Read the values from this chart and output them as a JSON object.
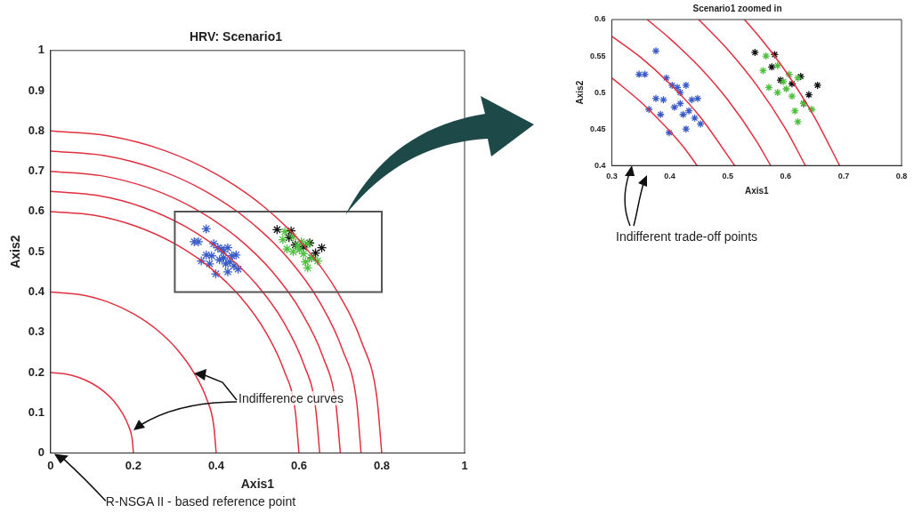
{
  "chart_data": [
    {
      "type": "scatter",
      "title": "HRV: Scenario1",
      "xlabel": "Axis1",
      "ylabel": "Axis2",
      "xlim": [
        0,
        1
      ],
      "ylim": [
        0,
        1
      ],
      "xticks": [
        0,
        0.2,
        0.4,
        0.6,
        0.8,
        1
      ],
      "yticks": [
        0,
        0.1,
        0.2,
        0.3,
        0.4,
        0.5,
        0.6,
        0.7,
        0.8,
        0.9,
        1
      ],
      "grid": false,
      "legend": false,
      "annotations": [
        "Indifference curves",
        "R-NSGA II - based reference point"
      ],
      "series": [
        {
          "type": "line",
          "marker": "none",
          "color": "#e03040",
          "x": [
            0,
            0.035,
            0.068,
            0.1,
            0.129,
            0.153,
            0.173,
            0.188,
            0.197,
            0.2
          ],
          "values": [
            0.2,
            0.197,
            0.188,
            0.173,
            0.153,
            0.129,
            0.1,
            0.068,
            0.035,
            0
          ]
        },
        {
          "type": "line",
          "marker": "none",
          "color": "#e03040",
          "x": [
            0,
            0.069,
            0.137,
            0.2,
            0.257,
            0.306,
            0.346,
            0.376,
            0.394,
            0.4
          ],
          "values": [
            0.4,
            0.394,
            0.376,
            0.346,
            0.306,
            0.257,
            0.2,
            0.137,
            0.069,
            0
          ]
        },
        {
          "type": "line",
          "marker": "none",
          "color": "#e03040",
          "x": [
            0,
            0.104,
            0.205,
            0.3,
            0.386,
            0.46,
            0.52,
            0.564,
            0.591,
            0.6
          ],
          "values": [
            0.6,
            0.591,
            0.564,
            0.52,
            0.46,
            0.386,
            0.3,
            0.205,
            0.104,
            0
          ]
        },
        {
          "type": "line",
          "marker": "none",
          "color": "#e03040",
          "x": [
            0,
            0.113,
            0.222,
            0.325,
            0.418,
            0.498,
            0.563,
            0.611,
            0.64,
            0.65
          ],
          "values": [
            0.65,
            0.64,
            0.611,
            0.563,
            0.498,
            0.418,
            0.325,
            0.222,
            0.113,
            0
          ]
        },
        {
          "type": "line",
          "marker": "none",
          "color": "#e03040",
          "x": [
            0,
            0.122,
            0.239,
            0.35,
            0.45,
            0.536,
            0.606,
            0.658,
            0.689,
            0.7
          ],
          "values": [
            0.7,
            0.689,
            0.658,
            0.606,
            0.536,
            0.45,
            0.35,
            0.239,
            0.122,
            0
          ]
        },
        {
          "type": "line",
          "marker": "none",
          "color": "#e03040",
          "x": [
            0,
            0.13,
            0.257,
            0.375,
            0.482,
            0.575,
            0.65,
            0.705,
            0.739,
            0.75
          ],
          "values": [
            0.75,
            0.739,
            0.705,
            0.65,
            0.575,
            0.482,
            0.375,
            0.257,
            0.13,
            0
          ]
        },
        {
          "type": "line",
          "marker": "none",
          "color": "#e03040",
          "x": [
            0,
            0.139,
            0.274,
            0.4,
            0.514,
            0.613,
            0.693,
            0.752,
            0.788,
            0.8
          ],
          "values": [
            0.8,
            0.788,
            0.752,
            0.693,
            0.613,
            0.514,
            0.4,
            0.274,
            0.139,
            0
          ]
        },
        {
          "type": "scatter",
          "color": "#3a5cc8",
          "x": [
            0.376,
            0.347,
            0.357,
            0.394,
            0.404,
            0.413,
            0.428,
            0.376,
            0.389,
            0.364,
            0.384,
            0.399,
            0.418,
            0.423,
            0.428,
            0.438,
            0.448,
            0.453,
            0.433,
            0.418,
            0.408,
            0.443
          ],
          "values": [
            0.557,
            0.525,
            0.525,
            0.52,
            0.51,
            0.507,
            0.51,
            0.492,
            0.49,
            0.477,
            0.47,
            0.445,
            0.485,
            0.47,
            0.45,
            0.49,
            0.492,
            0.457,
            0.475,
            0.5,
            0.48,
            0.465
          ]
        },
        {
          "type": "scatter",
          "color": "#4fbf3f",
          "x": [
            0.561,
            0.571,
            0.586,
            0.596,
            0.606,
            0.611,
            0.621,
            0.631,
            0.616,
            0.621,
            0.645,
            0.566,
            0.601,
            0.586
          ],
          "values": [
            0.53,
            0.507,
            0.537,
            0.515,
            0.525,
            0.495,
            0.52,
            0.485,
            0.475,
            0.46,
            0.477,
            0.55,
            0.505,
            0.5
          ]
        },
        {
          "type": "scatter",
          "color": "#111111",
          "x": [
            0.547,
            0.581,
            0.576,
            0.611,
            0.626,
            0.64,
            0.631,
            0.655,
            0.591
          ],
          "values": [
            0.555,
            0.552,
            0.535,
            0.512,
            0.522,
            0.497,
            0.485,
            0.51,
            0.517
          ]
        }
      ]
    },
    {
      "type": "scatter",
      "title": "Scenario1 zoomed in",
      "xlabel": "Axis1",
      "ylabel": "Axis2",
      "xlim": [
        0.3,
        0.8
      ],
      "ylim": [
        0.4,
        0.6
      ],
      "xticks": [
        0.3,
        0.4,
        0.5,
        0.6,
        0.7,
        0.8
      ],
      "yticks": [
        0.4,
        0.45,
        0.5,
        0.55,
        0.6
      ],
      "grid": false,
      "legend": false,
      "annotations": [
        "Indifferent trade-off points"
      ],
      "series": [
        {
          "type": "line",
          "marker": "none",
          "color": "#e03040",
          "x": [
            0.3,
            0.35,
            0.4,
            0.425,
            0.447
          ],
          "values": [
            0.52,
            0.487,
            0.447,
            0.424,
            0.4
          ]
        },
        {
          "type": "line",
          "marker": "none",
          "color": "#e03040",
          "x": [
            0.3,
            0.35,
            0.4,
            0.45,
            0.512
          ],
          "values": [
            0.577,
            0.548,
            0.512,
            0.469,
            0.4
          ]
        },
        {
          "type": "line",
          "marker": "none",
          "color": "#e03040",
          "x": [
            0.361,
            0.4,
            0.45,
            0.5,
            0.55,
            0.574
          ],
          "values": [
            0.6,
            0.574,
            0.536,
            0.49,
            0.433,
            0.4
          ]
        },
        {
          "type": "line",
          "marker": "none",
          "color": "#e03040",
          "x": [
            0.45,
            0.5,
            0.55,
            0.6,
            0.634
          ],
          "values": [
            0.6,
            0.559,
            0.51,
            0.45,
            0.4
          ]
        },
        {
          "type": "line",
          "marker": "none",
          "color": "#e03040",
          "x": [
            0.529,
            0.56,
            0.6,
            0.65,
            0.693
          ],
          "values": [
            0.6,
            0.571,
            0.529,
            0.466,
            0.4
          ]
        },
        {
          "type": "scatter",
          "color": "#3a5cc8",
          "x": [
            0.376,
            0.347,
            0.357,
            0.394,
            0.404,
            0.413,
            0.428,
            0.376,
            0.389,
            0.364,
            0.384,
            0.399,
            0.418,
            0.423,
            0.428,
            0.438,
            0.448,
            0.453,
            0.433,
            0.418,
            0.408,
            0.443
          ],
          "values": [
            0.557,
            0.525,
            0.525,
            0.52,
            0.51,
            0.507,
            0.51,
            0.492,
            0.49,
            0.477,
            0.47,
            0.445,
            0.485,
            0.47,
            0.45,
            0.49,
            0.492,
            0.457,
            0.475,
            0.5,
            0.48,
            0.465
          ]
        },
        {
          "type": "scatter",
          "color": "#4fbf3f",
          "x": [
            0.561,
            0.571,
            0.586,
            0.596,
            0.606,
            0.611,
            0.621,
            0.631,
            0.616,
            0.621,
            0.645,
            0.566,
            0.601,
            0.586
          ],
          "values": [
            0.53,
            0.507,
            0.537,
            0.515,
            0.525,
            0.495,
            0.52,
            0.485,
            0.475,
            0.46,
            0.477,
            0.55,
            0.505,
            0.5
          ]
        },
        {
          "type": "scatter",
          "color": "#111111",
          "x": [
            0.547,
            0.581,
            0.576,
            0.611,
            0.626,
            0.64,
            0.631,
            0.655,
            0.591
          ],
          "values": [
            0.555,
            0.552,
            0.535,
            0.512,
            0.522,
            0.497,
            0.485,
            0.51,
            0.517
          ]
        }
      ]
    }
  ]
}
